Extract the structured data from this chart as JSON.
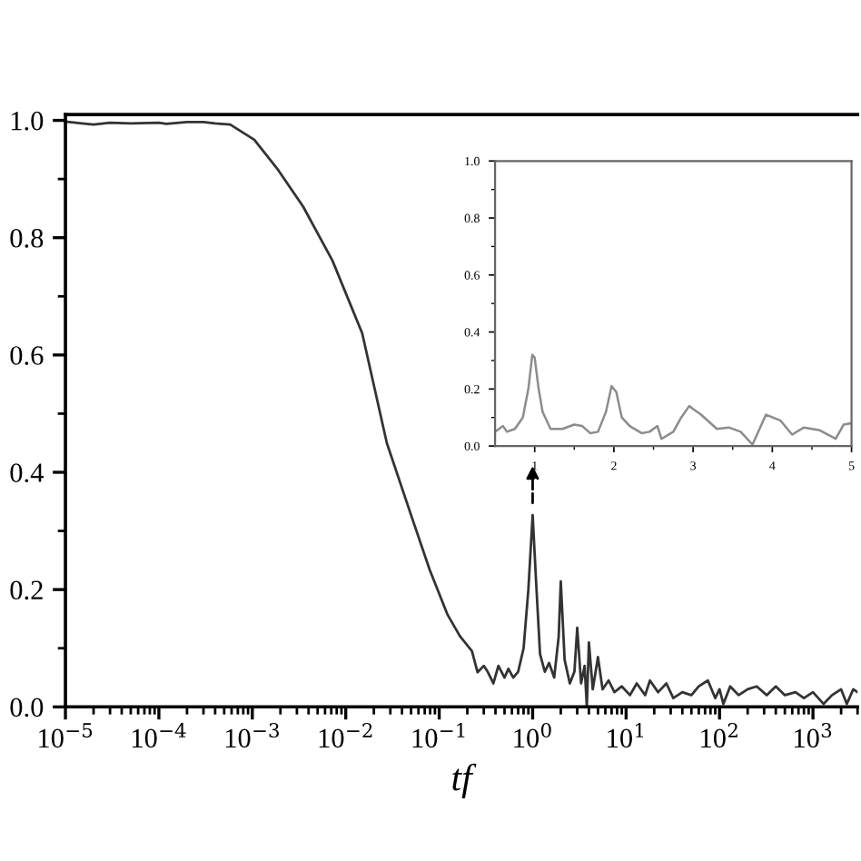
{
  "chart_data": [
    {
      "type": "line",
      "xlabel": "tf",
      "log": "x",
      "xlim": [
        1e-05,
        3000
      ],
      "ylim": [
        0,
        1.01
      ],
      "xticks": [
        {
          "value": 1e-05,
          "label": "10$^{−5}$"
        },
        {
          "value": 0.0001,
          "label": "10$^{−4}$"
        },
        {
          "value": 0.001,
          "label": "10$^{−3}$"
        },
        {
          "value": 0.01,
          "label": "10$^{−2}$"
        },
        {
          "value": 0.1,
          "label": "10$^{−1}$"
        },
        {
          "value": 1,
          "label": "10$^{0}$"
        },
        {
          "value": 10,
          "label": "10$^{1}$"
        },
        {
          "value": 100,
          "label": "10$^{2}$"
        },
        {
          "value": 1000,
          "label": "10$^{3}$"
        }
      ],
      "yticks": [
        {
          "value": 0,
          "label": "0.0"
        },
        {
          "value": 0.2,
          "label": "0.2"
        },
        {
          "value": 0.4,
          "label": "0.4"
        },
        {
          "value": 0.6,
          "label": "0.6"
        },
        {
          "value": 0.8,
          "label": "0.8"
        },
        {
          "value": 1.0,
          "label": "1.0"
        }
      ],
      "grid": false,
      "marker": "none",
      "line_style": "solid",
      "series": [
        {
          "color": "#333333",
          "x": [
            1e-05,
            1.5e-05,
            2e-05,
            3e-05,
            5e-05,
            0.0001,
            0.00012,
            0.0002,
            0.0003,
            0.0004,
            0.00058,
            0.00105,
            0.0019,
            0.0035,
            0.0072,
            0.015,
            0.0275,
            0.05,
            0.079,
            0.123,
            0.166,
            0.224,
            0.257,
            0.3,
            0.33,
            0.38,
            0.43,
            0.5,
            0.55,
            0.62,
            0.7,
            0.8,
            0.9,
            1.0,
            1.1,
            1.2,
            1.35,
            1.5,
            1.7,
            1.9,
            2.0,
            2.2,
            2.5,
            2.8,
            3.0,
            3.3,
            3.6,
            3.8,
            4.0,
            4.4,
            5.0,
            5.6,
            6.5,
            7.5,
            9,
            11,
            13,
            16,
            18,
            22,
            27,
            32,
            40,
            50,
            60,
            75,
            90,
            100,
            110,
            130,
            160,
            200,
            250,
            320,
            400,
            500,
            650,
            800,
            1000,
            1300,
            1600,
            2000,
            2300,
            2700,
            3000
          ],
          "values": [
            0.998,
            0.995,
            0.993,
            0.996,
            0.995,
            0.996,
            0.994,
            0.997,
            0.997,
            0.995,
            0.993,
            0.967,
            0.915,
            0.853,
            0.761,
            0.637,
            0.45,
            0.327,
            0.234,
            0.157,
            0.121,
            0.095,
            0.059,
            0.07,
            0.06,
            0.04,
            0.07,
            0.05,
            0.065,
            0.05,
            0.06,
            0.1,
            0.2,
            0.327,
            0.2,
            0.09,
            0.06,
            0.075,
            0.05,
            0.12,
            0.214,
            0.08,
            0.04,
            0.06,
            0.135,
            0.04,
            0.07,
            0.0,
            0.11,
            0.03,
            0.085,
            0.03,
            0.045,
            0.025,
            0.035,
            0.02,
            0.04,
            0.02,
            0.045,
            0.025,
            0.04,
            0.015,
            0.025,
            0.02,
            0.035,
            0.045,
            0.015,
            0.03,
            0.005,
            0.035,
            0.02,
            0.03,
            0.035,
            0.02,
            0.035,
            0.02,
            0.025,
            0.015,
            0.025,
            0.005,
            0.02,
            0.03,
            0.005,
            0.03,
            0.025
          ]
        }
      ]
    },
    {
      "type": "line",
      "xlim": [
        0.5,
        5
      ],
      "ylim": [
        0,
        1.0
      ],
      "xticks": [
        1,
        2,
        3,
        4,
        5
      ],
      "yticks": [
        {
          "value": 0,
          "label": "0.0"
        },
        {
          "value": 0.2,
          "label": "0.2"
        },
        {
          "value": 0.4,
          "label": "0.4"
        },
        {
          "value": 0.6,
          "label": "0.6"
        },
        {
          "value": 0.8,
          "label": "0.8"
        },
        {
          "value": 1.0,
          "label": "1.0"
        }
      ],
      "grid": false,
      "marker": "none",
      "line_style": "solid",
      "series": [
        {
          "color": "#8c8c8c",
          "x": [
            0.5,
            0.55,
            0.6,
            0.65,
            0.75,
            0.85,
            0.92,
            0.97,
            1.0,
            1.05,
            1.1,
            1.2,
            1.35,
            1.5,
            1.6,
            1.7,
            1.8,
            1.9,
            1.97,
            2.03,
            2.1,
            2.2,
            2.35,
            2.45,
            2.55,
            2.6,
            2.75,
            2.85,
            2.95,
            3.1,
            3.3,
            3.45,
            3.6,
            3.75,
            3.92,
            4.1,
            4.25,
            4.4,
            4.6,
            4.8,
            4.9,
            5.0
          ],
          "values": [
            0.05,
            0.06,
            0.07,
            0.05,
            0.06,
            0.1,
            0.2,
            0.32,
            0.31,
            0.2,
            0.12,
            0.06,
            0.06,
            0.075,
            0.07,
            0.045,
            0.05,
            0.12,
            0.21,
            0.19,
            0.1,
            0.07,
            0.045,
            0.05,
            0.07,
            0.025,
            0.05,
            0.1,
            0.14,
            0.11,
            0.06,
            0.065,
            0.05,
            0.005,
            0.11,
            0.09,
            0.04,
            0.065,
            0.055,
            0.025,
            0.075,
            0.08
          ]
        }
      ]
    }
  ]
}
